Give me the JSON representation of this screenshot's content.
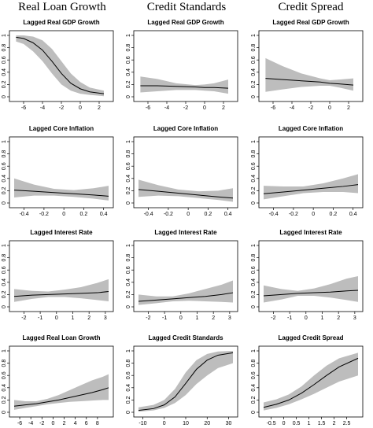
{
  "column_headers": [
    "Real Loan Growth",
    "Credit Standards",
    "Credit Spread"
  ],
  "chart_data": [
    {
      "type": "line",
      "title": "Lagged Real GDP Growth",
      "xlim": [
        -7,
        3
      ],
      "ylim": [
        0,
        1
      ],
      "xticks": [
        -6,
        -4,
        -2,
        0,
        2
      ],
      "yticks": [
        0,
        0.2,
        0.4,
        0.6,
        0.8,
        1
      ],
      "x": [
        -6.8,
        -6,
        -5,
        -4,
        -3,
        -2,
        -1,
        0,
        1,
        2.5
      ],
      "mean": [
        0.97,
        0.95,
        0.88,
        0.76,
        0.58,
        0.38,
        0.22,
        0.13,
        0.08,
        0.05
      ],
      "lower": [
        0.9,
        0.86,
        0.74,
        0.58,
        0.38,
        0.2,
        0.1,
        0.05,
        0.03,
        0.01
      ],
      "upper": [
        1.0,
        1.0,
        0.98,
        0.92,
        0.78,
        0.58,
        0.38,
        0.24,
        0.15,
        0.1
      ]
    },
    {
      "type": "line",
      "title": "Lagged Real GDP Growth",
      "xlim": [
        -7,
        3
      ],
      "ylim": [
        0,
        1
      ],
      "xticks": [
        -6,
        -4,
        -2,
        0,
        2
      ],
      "yticks": [
        0,
        0.2,
        0.4,
        0.6,
        0.8,
        1
      ],
      "x": [
        -6.8,
        -5,
        -3,
        -1,
        0,
        1,
        2.5
      ],
      "mean": [
        0.18,
        0.18,
        0.17,
        0.16,
        0.15,
        0.15,
        0.14
      ],
      "lower": [
        0.07,
        0.09,
        0.11,
        0.11,
        0.1,
        0.09,
        0.05
      ],
      "upper": [
        0.33,
        0.29,
        0.22,
        0.19,
        0.2,
        0.22,
        0.28
      ]
    },
    {
      "type": "line",
      "title": "Lagged Real GDP Growth",
      "xlim": [
        -7,
        3
      ],
      "ylim": [
        0,
        1
      ],
      "xticks": [
        -6,
        -4,
        -2,
        0,
        2
      ],
      "yticks": [
        0,
        0.2,
        0.4,
        0.6,
        0.8,
        1
      ],
      "x": [
        -6.8,
        -5,
        -3,
        -1,
        0,
        1,
        2.5
      ],
      "mean": [
        0.3,
        0.28,
        0.26,
        0.24,
        0.22,
        0.21,
        0.19
      ],
      "lower": [
        0.08,
        0.12,
        0.16,
        0.18,
        0.18,
        0.15,
        0.1
      ],
      "upper": [
        0.63,
        0.5,
        0.38,
        0.3,
        0.27,
        0.28,
        0.3
      ]
    },
    {
      "type": "line",
      "title": "Lagged Core Inflation",
      "xlim": [
        -0.5,
        0.45
      ],
      "ylim": [
        0,
        1
      ],
      "xticks": [
        -0.4,
        -0.2,
        0,
        0.2,
        0.4
      ],
      "yticks": [
        0,
        0.2,
        0.4,
        0.6,
        0.8,
        1
      ],
      "x": [
        -0.5,
        -0.3,
        -0.1,
        0.1,
        0.3,
        0.45
      ],
      "mean": [
        0.21,
        0.19,
        0.17,
        0.15,
        0.13,
        0.11
      ],
      "lower": [
        0.09,
        0.12,
        0.12,
        0.1,
        0.07,
        0.04
      ],
      "upper": [
        0.4,
        0.3,
        0.23,
        0.21,
        0.24,
        0.28
      ]
    },
    {
      "type": "line",
      "title": "Lagged Core Inflation",
      "xlim": [
        -0.5,
        0.45
      ],
      "ylim": [
        0,
        1
      ],
      "xticks": [
        -0.4,
        -0.2,
        0,
        0.2,
        0.4
      ],
      "yticks": [
        0,
        0.2,
        0.4,
        0.6,
        0.8,
        1
      ],
      "x": [
        -0.5,
        -0.3,
        -0.1,
        0.1,
        0.3,
        0.45
      ],
      "mean": [
        0.22,
        0.19,
        0.16,
        0.13,
        0.1,
        0.08
      ],
      "lower": [
        0.1,
        0.12,
        0.11,
        0.08,
        0.05,
        0.02
      ],
      "upper": [
        0.38,
        0.29,
        0.22,
        0.19,
        0.2,
        0.24
      ]
    },
    {
      "type": "line",
      "title": "Lagged Core Inflation",
      "xlim": [
        -0.5,
        0.45
      ],
      "ylim": [
        0,
        1
      ],
      "xticks": [
        -0.4,
        -0.2,
        0,
        0.2,
        0.4
      ],
      "yticks": [
        0,
        0.2,
        0.4,
        0.6,
        0.8,
        1
      ],
      "x": [
        -0.5,
        -0.3,
        -0.1,
        0.1,
        0.3,
        0.45
      ],
      "mean": [
        0.15,
        0.18,
        0.21,
        0.24,
        0.27,
        0.3
      ],
      "lower": [
        0.06,
        0.11,
        0.16,
        0.18,
        0.18,
        0.16
      ],
      "upper": [
        0.28,
        0.27,
        0.27,
        0.32,
        0.4,
        0.47
      ]
    },
    {
      "type": "line",
      "title": "Lagged Interest Rate",
      "xlim": [
        -2.6,
        3.2
      ],
      "ylim": [
        0,
        1
      ],
      "xticks": [
        -2,
        -1,
        0,
        1,
        2,
        3
      ],
      "yticks": [
        0,
        0.2,
        0.4,
        0.6,
        0.8,
        1
      ],
      "x": [
        -2.6,
        -1.5,
        -0.5,
        0.5,
        1.5,
        2.5,
        3.2
      ],
      "mean": [
        0.17,
        0.19,
        0.2,
        0.21,
        0.22,
        0.23,
        0.25
      ],
      "lower": [
        0.08,
        0.13,
        0.16,
        0.16,
        0.14,
        0.11,
        0.09
      ],
      "upper": [
        0.29,
        0.26,
        0.25,
        0.28,
        0.32,
        0.39,
        0.45
      ]
    },
    {
      "type": "line",
      "title": "Lagged Interest Rate",
      "xlim": [
        -2.6,
        3.2
      ],
      "ylim": [
        0,
        1
      ],
      "xticks": [
        -2,
        -1,
        0,
        1,
        2,
        3
      ],
      "yticks": [
        0,
        0.2,
        0.4,
        0.6,
        0.8,
        1
      ],
      "x": [
        -2.6,
        -1.5,
        -0.5,
        0.5,
        1.5,
        2.5,
        3.2
      ],
      "mean": [
        0.09,
        0.11,
        0.13,
        0.15,
        0.17,
        0.2,
        0.23
      ],
      "lower": [
        0.03,
        0.06,
        0.09,
        0.1,
        0.09,
        0.08,
        0.07
      ],
      "upper": [
        0.2,
        0.17,
        0.17,
        0.22,
        0.29,
        0.36,
        0.43
      ]
    },
    {
      "type": "line",
      "title": "Lagged Interest Rate",
      "xlim": [
        -2.6,
        3.2
      ],
      "ylim": [
        0,
        1
      ],
      "xticks": [
        -2,
        -1,
        0,
        1,
        2,
        3
      ],
      "yticks": [
        0,
        0.2,
        0.4,
        0.6,
        0.8,
        1
      ],
      "x": [
        -2.6,
        -1.5,
        -0.5,
        0.5,
        1.5,
        2.5,
        3.2
      ],
      "mean": [
        0.18,
        0.2,
        0.22,
        0.23,
        0.24,
        0.26,
        0.27
      ],
      "lower": [
        0.07,
        0.12,
        0.18,
        0.18,
        0.15,
        0.11,
        0.08
      ],
      "upper": [
        0.35,
        0.29,
        0.26,
        0.3,
        0.37,
        0.46,
        0.5
      ]
    },
    {
      "type": "line",
      "title": "Lagged Real Loan Growth",
      "xlim": [
        -7,
        10
      ],
      "ylim": [
        0,
        1
      ],
      "xticks": [
        -6,
        -4,
        -2,
        0,
        2,
        4,
        6,
        8
      ],
      "yticks": [
        0,
        0.2,
        0.4,
        0.6,
        0.8,
        1
      ],
      "x": [
        -7,
        -5,
        -3,
        -1,
        1,
        3,
        5,
        7,
        9,
        10
      ],
      "mean": [
        0.1,
        0.12,
        0.14,
        0.17,
        0.2,
        0.24,
        0.28,
        0.32,
        0.37,
        0.4
      ],
      "lower": [
        0.04,
        0.07,
        0.1,
        0.13,
        0.15,
        0.17,
        0.18,
        0.19,
        0.2,
        0.2
      ],
      "upper": [
        0.2,
        0.18,
        0.18,
        0.22,
        0.28,
        0.36,
        0.44,
        0.52,
        0.58,
        0.62
      ]
    },
    {
      "type": "line",
      "title": "Lagged Credit Standards",
      "xlim": [
        -12,
        32
      ],
      "ylim": [
        0,
        1
      ],
      "xticks": [
        -10,
        0,
        10,
        20,
        30
      ],
      "yticks": [
        0,
        0.2,
        0.4,
        0.6,
        0.8,
        1
      ],
      "x": [
        -12,
        -5,
        0,
        5,
        10,
        15,
        20,
        25,
        32
      ],
      "mean": [
        0.03,
        0.06,
        0.12,
        0.25,
        0.47,
        0.7,
        0.85,
        0.93,
        0.97
      ],
      "lower": [
        0.01,
        0.03,
        0.07,
        0.15,
        0.28,
        0.46,
        0.6,
        0.72,
        0.8
      ],
      "upper": [
        0.08,
        0.12,
        0.2,
        0.38,
        0.65,
        0.85,
        0.95,
        0.99,
        1.0
      ]
    },
    {
      "type": "line",
      "title": "Lagged Credit Spread",
      "xlim": [
        -0.8,
        2.95
      ],
      "ylim": [
        0,
        1
      ],
      "xticks": [
        -0.5,
        0,
        0.5,
        1,
        1.5,
        2,
        2.5
      ],
      "yticks": [
        0,
        0.2,
        0.4,
        0.6,
        0.8,
        1
      ],
      "x": [
        -0.8,
        -0.3,
        0.2,
        0.7,
        1.2,
        1.7,
        2.2,
        2.95
      ],
      "mean": [
        0.08,
        0.13,
        0.2,
        0.31,
        0.45,
        0.6,
        0.74,
        0.88
      ],
      "lower": [
        0.03,
        0.07,
        0.13,
        0.21,
        0.3,
        0.4,
        0.5,
        0.6
      ],
      "upper": [
        0.16,
        0.21,
        0.29,
        0.42,
        0.6,
        0.76,
        0.88,
        0.97
      ]
    }
  ]
}
